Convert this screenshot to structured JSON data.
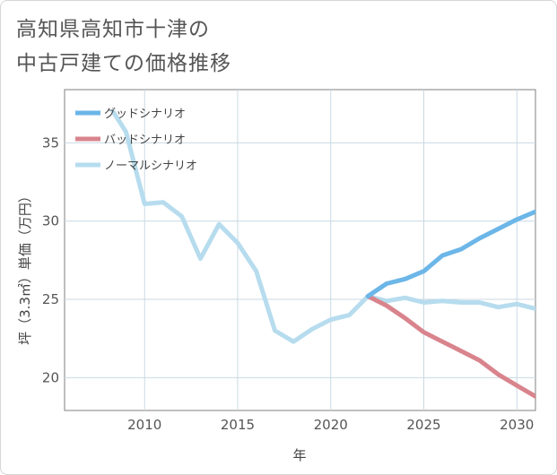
{
  "title_lines": [
    "高知県高知市十津の",
    "中古戸建ての価格推移"
  ],
  "chart_data": {
    "type": "line",
    "title": "高知県高知市十津の中古戸建ての価格推移",
    "xlabel": "年",
    "ylabel": "坪（3.3㎡）単価（万円）",
    "xlim": [
      2005.7,
      2031.0
    ],
    "ylim": [
      17.9,
      38.4
    ],
    "x_ticks": [
      2010,
      2015,
      2020,
      2025,
      2030
    ],
    "y_ticks": [
      20,
      25,
      30,
      35
    ],
    "grid": true,
    "legend_position": "top-left",
    "series": [
      {
        "name": "グッドシナリオ",
        "color": "#6cb6e8",
        "x": [
          2022,
          2023,
          2024,
          2025,
          2026,
          2027,
          2028,
          2029,
          2030,
          2031
        ],
        "y": [
          25.2,
          26.0,
          26.3,
          26.8,
          27.8,
          28.2,
          28.9,
          29.5,
          30.1,
          30.6
        ]
      },
      {
        "name": "バッドシナリオ",
        "color": "#d9848d",
        "x": [
          2022,
          2023,
          2024,
          2025,
          2026,
          2027,
          2028,
          2029,
          2030,
          2031
        ],
        "y": [
          25.2,
          24.6,
          23.8,
          22.9,
          22.3,
          21.7,
          21.1,
          20.2,
          19.5,
          18.8
        ]
      },
      {
        "name": "ノーマルシナリオ",
        "color": "#b6dcee",
        "x": [
          2008.3,
          2009,
          2010,
          2011,
          2012,
          2013,
          2014,
          2015,
          2016,
          2017,
          2018,
          2019,
          2020,
          2021,
          2022,
          2023,
          2024,
          2025,
          2026,
          2027,
          2028,
          2029,
          2030,
          2031
        ],
        "y": [
          37.0,
          35.7,
          31.1,
          31.2,
          30.3,
          27.6,
          29.8,
          28.6,
          26.8,
          23.0,
          22.3,
          23.1,
          23.7,
          24.0,
          25.2,
          24.9,
          25.1,
          24.8,
          24.9,
          24.8,
          24.8,
          24.5,
          24.7,
          24.4
        ]
      }
    ]
  }
}
